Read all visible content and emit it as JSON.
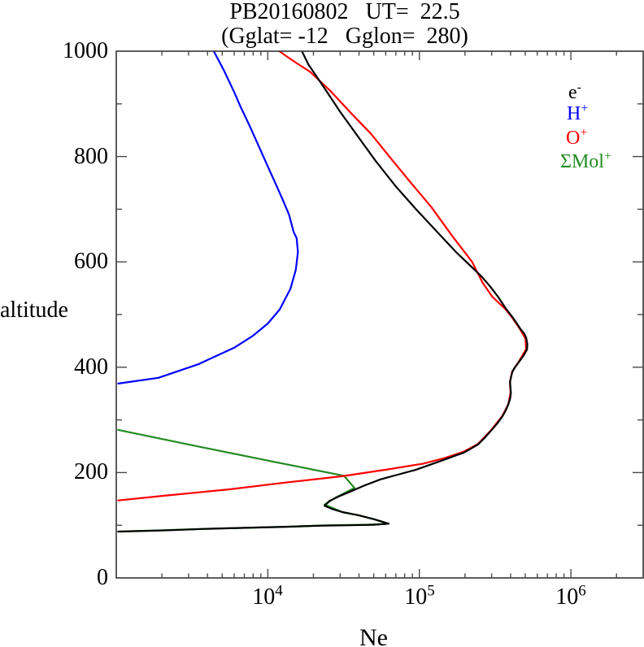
{
  "title": {
    "line1": "PB20160802   UT=  22.5",
    "line2": "(Gglat= -12   Gglon=  280)"
  },
  "axes": {
    "y_label": "altitude",
    "x_label": "Ne",
    "y_tick_labels": [
      "1000",
      "800",
      "600",
      "400",
      "200",
      "0"
    ],
    "x_tick_base": "10",
    "x_tick_exponents": [
      "4",
      "5",
      "6"
    ]
  },
  "legend": {
    "items": [
      {
        "base": "e",
        "sup": "-",
        "color": "#000000"
      },
      {
        "base": "H",
        "sup": "+",
        "color": "#0000ff"
      },
      {
        "base": "O",
        "sup": "+",
        "color": "#ff0000"
      },
      {
        "base": "ΣMol",
        "sup": "+",
        "color": "#228b22"
      }
    ]
  },
  "chart_data": {
    "type": "line",
    "title": "PB20160802 UT= 22.5 (Gglat= -12 Gglon= 280)",
    "xlabel": "Ne",
    "ylabel": "altitude",
    "x_scale": "log",
    "xlim": [
      1000,
      3000000
    ],
    "ylim": [
      0,
      1000
    ],
    "grid": false,
    "legend_position": "upper right inside",
    "x_major_ticks": [
      10000,
      100000,
      1000000
    ],
    "y_major_ticks": [
      0,
      200,
      400,
      600,
      800,
      1000
    ],
    "y_minor_ticks": [
      100,
      300,
      500,
      700,
      900
    ],
    "frame_color": "#4a4a4a",
    "series": [
      {
        "name": "ΣMol+",
        "color": "#228b22",
        "points_ne_alt": [
          [
            1030,
            281
          ],
          [
            3830,
            247
          ],
          [
            11600,
            219
          ],
          [
            31800,
            194
          ],
          [
            37300,
            171
          ],
          [
            27400,
            151
          ],
          [
            23700,
            139
          ],
          [
            31000,
            125
          ],
          [
            39700,
            119
          ],
          [
            50800,
            111
          ],
          [
            62700,
            103
          ],
          [
            45000,
            101
          ],
          [
            25000,
            100
          ],
          [
            13100,
            97
          ],
          [
            3830,
            93
          ],
          [
            1030,
            88
          ]
        ]
      },
      {
        "name": "O+",
        "color": "#ff0000",
        "points_ne_alt": [
          [
            1030,
            147
          ],
          [
            2070,
            156
          ],
          [
            5530,
            168
          ],
          [
            13100,
            181
          ],
          [
            31000,
            193
          ],
          [
            65000,
            207
          ],
          [
            106000,
            217
          ],
          [
            148000,
            228
          ],
          [
            197000,
            240
          ],
          [
            243000,
            254
          ],
          [
            296000,
            280
          ],
          [
            352000,
            307
          ],
          [
            387000,
            330
          ],
          [
            400000,
            352
          ],
          [
            396000,
            372
          ],
          [
            410000,
            392
          ],
          [
            452000,
            410
          ],
          [
            506000,
            434
          ],
          [
            502000,
            454
          ],
          [
            462000,
            472
          ],
          [
            408000,
            495
          ],
          [
            368000,
            511
          ],
          [
            303000,
            534
          ],
          [
            262000,
            560
          ],
          [
            223000,
            600
          ],
          [
            164000,
            650
          ],
          [
            120000,
            704
          ],
          [
            88000,
            750
          ],
          [
            65000,
            796
          ],
          [
            48000,
            843
          ],
          [
            35000,
            884
          ],
          [
            26000,
            924
          ],
          [
            19000,
            961
          ],
          [
            15000,
            980
          ],
          [
            11900,
            1000
          ]
        ]
      },
      {
        "name": "H+",
        "color": "#0000ff",
        "points_ne_alt": [
          [
            1030,
            369
          ],
          [
            1900,
            380
          ],
          [
            3500,
            406
          ],
          [
            6000,
            437
          ],
          [
            8000,
            460
          ],
          [
            10000,
            483
          ],
          [
            12000,
            510
          ],
          [
            14100,
            549
          ],
          [
            15300,
            585
          ],
          [
            15800,
            619
          ],
          [
            15500,
            645
          ],
          [
            14800,
            657
          ],
          [
            13800,
            690
          ],
          [
            12500,
            719
          ],
          [
            11200,
            750
          ],
          [
            10000,
            781
          ],
          [
            8700,
            820
          ],
          [
            7600,
            858
          ],
          [
            6600,
            895
          ],
          [
            5960,
            924
          ],
          [
            5100,
            965
          ],
          [
            4400,
            1000
          ]
        ]
      },
      {
        "name": "e-",
        "color": "#000000",
        "points_ne_alt": [
          [
            1030,
            88
          ],
          [
            2000,
            90
          ],
          [
            3830,
            93
          ],
          [
            7000,
            95
          ],
          [
            13100,
            97
          ],
          [
            22000,
            99
          ],
          [
            35100,
            100
          ],
          [
            50000,
            101
          ],
          [
            62700,
            103
          ],
          [
            50800,
            111
          ],
          [
            39700,
            119
          ],
          [
            31000,
            125
          ],
          [
            26500,
            131
          ],
          [
            23700,
            137
          ],
          [
            25500,
            146
          ],
          [
            29500,
            155
          ],
          [
            35100,
            164
          ],
          [
            43000,
            175
          ],
          [
            55300,
            187
          ],
          [
            72000,
            196
          ],
          [
            94000,
            205
          ],
          [
            118000,
            215
          ],
          [
            148000,
            225
          ],
          [
            172000,
            232
          ],
          [
            197000,
            238
          ],
          [
            243000,
            253
          ],
          [
            270000,
            266
          ],
          [
            296000,
            279
          ],
          [
            324000,
            292
          ],
          [
            352000,
            306
          ],
          [
            372000,
            318
          ],
          [
            387000,
            330
          ],
          [
            398000,
            341
          ],
          [
            402000,
            352
          ],
          [
            399000,
            362
          ],
          [
            397000,
            372
          ],
          [
            403000,
            382
          ],
          [
            412000,
            392
          ],
          [
            430000,
            401
          ],
          [
            454000,
            410
          ],
          [
            487000,
            422
          ],
          [
            514000,
            434
          ],
          [
            516000,
            444
          ],
          [
            508000,
            455
          ],
          [
            492000,
            464
          ],
          [
            466000,
            472
          ],
          [
            438000,
            484
          ],
          [
            412000,
            495
          ],
          [
            373000,
            511
          ],
          [
            330000,
            534
          ],
          [
            294000,
            553
          ],
          [
            258000,
            572
          ],
          [
            213000,
            595
          ],
          [
            174000,
            619
          ],
          [
            128000,
            660
          ],
          [
            95000,
            700
          ],
          [
            70000,
            743
          ],
          [
            52000,
            790
          ],
          [
            40000,
            835
          ],
          [
            30000,
            885
          ],
          [
            23000,
            935
          ],
          [
            18500,
            975
          ],
          [
            16800,
            1000
          ]
        ]
      }
    ]
  }
}
